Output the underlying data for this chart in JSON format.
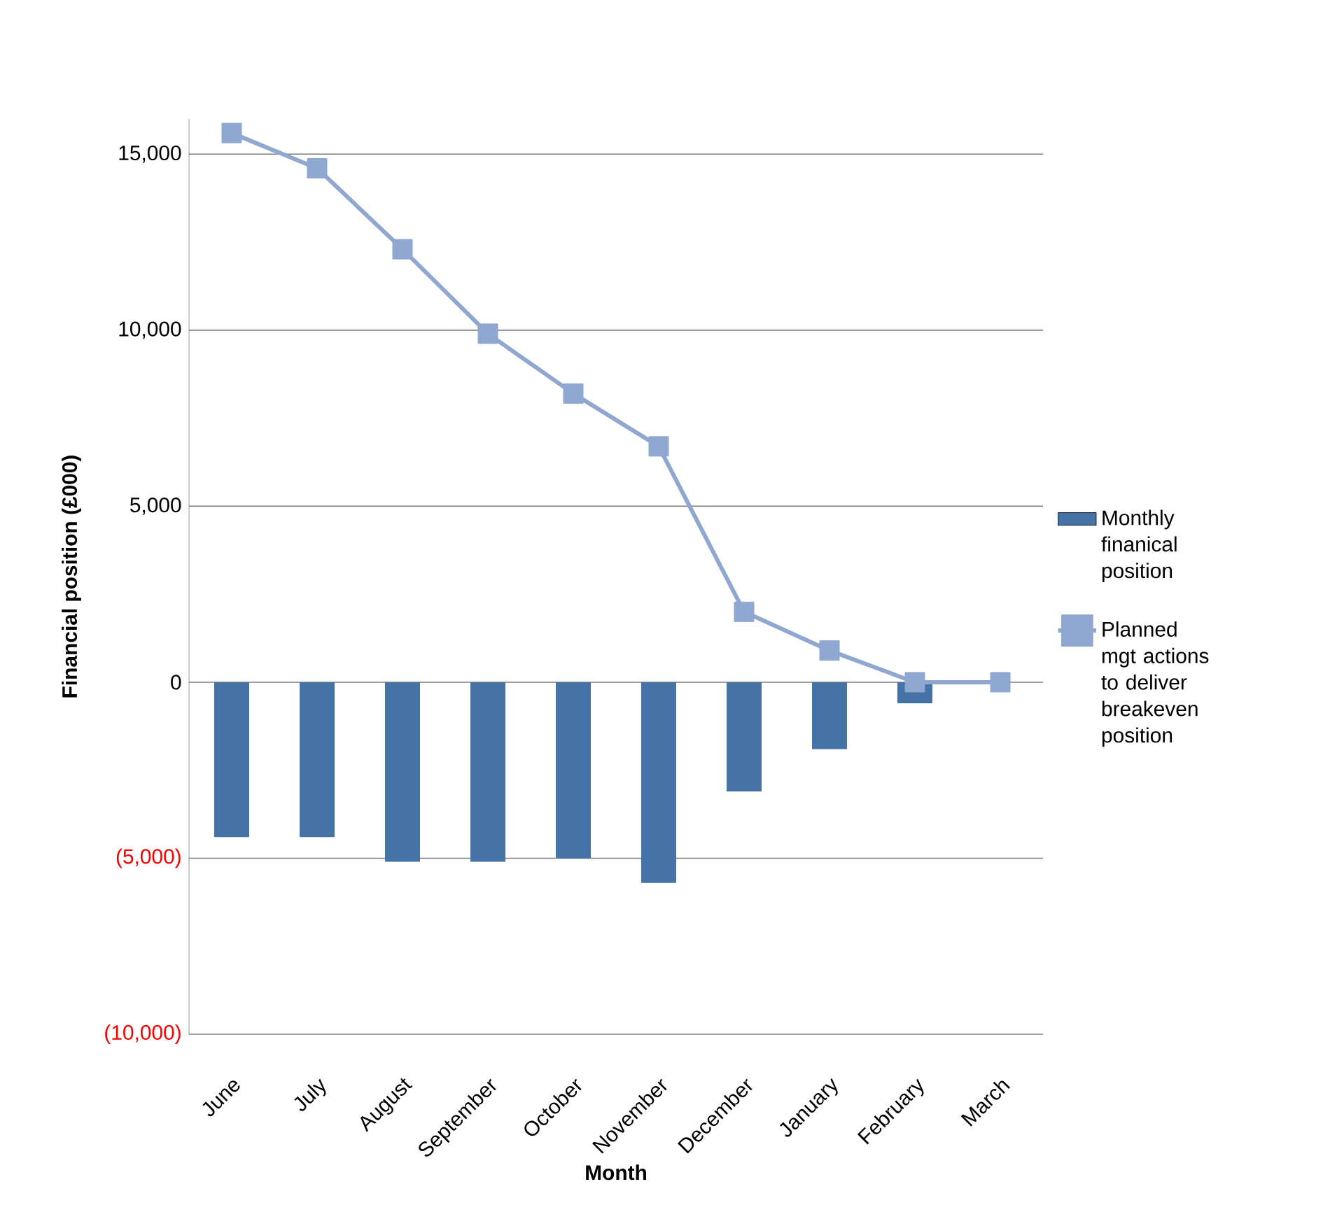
{
  "chart_data": {
    "type": "bar",
    "xlabel": "Month",
    "ylabel": "Financial position (£000)",
    "categories": [
      "June",
      "July",
      "August",
      "September",
      "October",
      "November",
      "December",
      "January",
      "February",
      "March"
    ],
    "series": [
      {
        "name": "Monthly finanical position",
        "color": "#4572a7",
        "values": [
          -4400,
          -4400,
          -5100,
          -5100,
          -5000,
          -5700,
          -3100,
          -1900,
          -600,
          null
        ]
      },
      {
        "name": "Planned mgt actions to deliver breakeven position",
        "type": "line",
        "color": "#8fa7d1",
        "marker": "square",
        "values": [
          15600,
          14600,
          12300,
          9900,
          8200,
          6700,
          2000,
          900,
          0,
          0
        ]
      }
    ],
    "ylim": [
      -10000,
      16000
    ],
    "yticks": [
      {
        "value": -10000,
        "label": "(10,000)"
      },
      {
        "value": -5000,
        "label": "(5,000)"
      },
      {
        "value": 0,
        "label": "0"
      },
      {
        "value": 5000,
        "label": "5,000"
      },
      {
        "value": 10000,
        "label": "10,000"
      },
      {
        "value": 15000,
        "label": "15,000"
      }
    ],
    "grid": "y",
    "legend": "right"
  }
}
